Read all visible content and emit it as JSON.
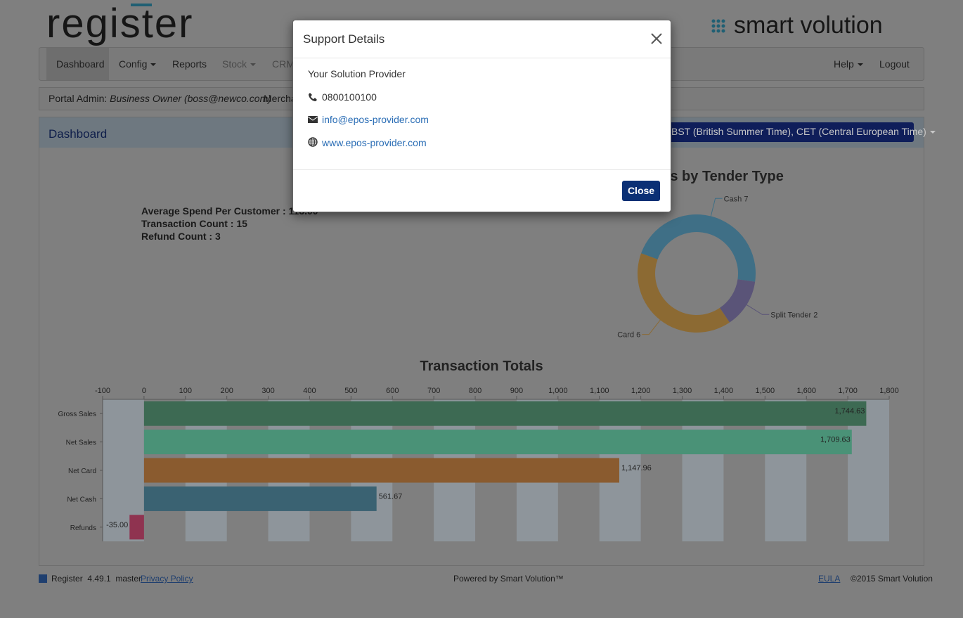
{
  "header": {
    "logo": "register",
    "brand": "smart volution"
  },
  "nav": {
    "left": [
      "Dashboard",
      "Config",
      "Reports",
      "Stock",
      "CRM"
    ],
    "right": [
      "Help",
      "Logout"
    ]
  },
  "info_bar": {
    "portal_admin_label": "Portal Admin:",
    "portal_admin": "Business Owner (boss@newco.com)",
    "merchant_label": "Mercha"
  },
  "panel": {
    "title": "Dashboard",
    "timezone": "BST (British Summer Time), CET (Central European Time)",
    "stats": [
      "Average Spend Per Customer : 113.00",
      "Transaction Count : 15",
      "Refund Count : 3"
    ]
  },
  "chart_data": [
    {
      "type": "donut",
      "title": "Transactions by Tender Type",
      "categories": [
        "Cash",
        "Split Tender",
        "Card"
      ],
      "values": [
        7,
        2,
        6
      ],
      "colors": [
        "#3f6f86",
        "#5a5478",
        "#8c6a33"
      ]
    },
    {
      "type": "bar",
      "orientation": "horizontal",
      "title": "Transaction Totals",
      "categories": [
        "Gross Sales",
        "Net Sales",
        "Net Card",
        "Net Cash",
        "Refunds"
      ],
      "values": [
        1744.63,
        1709.63,
        1147.96,
        561.67,
        -35.0
      ],
      "value_labels": [
        "1,744.63",
        "1,709.63",
        "1,147.96",
        "561.67",
        "-35.00"
      ],
      "colors": [
        "#3d6a53",
        "#4a9277",
        "#8a5b2f",
        "#3a6272",
        "#8f3350"
      ],
      "xlim": [
        -100,
        1800
      ],
      "xticks": [
        -100,
        0,
        100,
        200,
        300,
        400,
        500,
        600,
        700,
        800,
        900,
        {
          "value": 1000,
          "label": "1,000"
        },
        {
          "value": 1100,
          "label": "1,100"
        },
        {
          "value": 1200,
          "label": "1,200"
        },
        {
          "value": 1300,
          "label": "1,300"
        },
        {
          "value": 1400,
          "label": "1,400"
        },
        {
          "value": 1500,
          "label": "1,500"
        },
        {
          "value": 1600,
          "label": "1,600"
        },
        {
          "value": 1700,
          "label": "1,700"
        },
        {
          "value": 1800,
          "label": "1,800"
        }
      ]
    }
  ],
  "modal": {
    "title": "Support Details",
    "provider": "Your Solution Provider",
    "phone": "0800100100",
    "email": "info@epos-provider.com",
    "website": "www.epos-provider.com",
    "close_button": "Close"
  },
  "footer": {
    "version": "Register  4.49.1  master",
    "privacy": "Privacy Policy",
    "powered": "Powered by Smart Volution™",
    "eula": "EULA",
    "copyright": "©2015 Smart Volution"
  }
}
